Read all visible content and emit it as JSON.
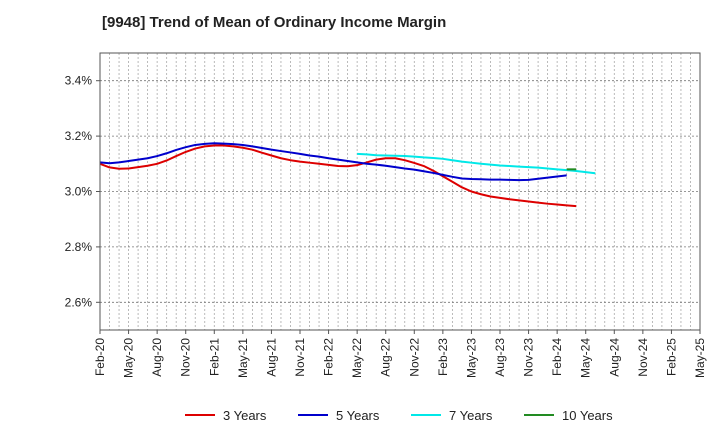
{
  "chart_data": {
    "type": "line",
    "title": "[9948]  Trend of Mean of Ordinary Income Margin",
    "xlabel": "",
    "ylabel": "",
    "ylim": [
      2.5,
      3.5
    ],
    "grid": true,
    "legend_position": "bottom",
    "x_tick_labels": [
      "Feb-20",
      "May-20",
      "Aug-20",
      "Nov-20",
      "Feb-21",
      "May-21",
      "Aug-21",
      "Nov-21",
      "Feb-22",
      "May-22",
      "Aug-22",
      "Nov-22",
      "Feb-23",
      "May-23",
      "Aug-23",
      "Nov-23",
      "Feb-24",
      "May-24",
      "Aug-24",
      "Nov-24",
      "Feb-25",
      "May-25"
    ],
    "y_ticks": [
      2.6,
      2.8,
      3.0,
      3.2,
      3.4
    ],
    "y_tick_labels": [
      "2.6%",
      "2.8%",
      "3.0%",
      "3.2%",
      "3.4%"
    ],
    "series": [
      {
        "name": "3 Years",
        "color": "#dd0000",
        "start_index": 0,
        "values": [
          3.1,
          3.087,
          3.082,
          3.083,
          3.088,
          3.093,
          3.1,
          3.112,
          3.128,
          3.143,
          3.155,
          3.163,
          3.166,
          3.166,
          3.163,
          3.158,
          3.151,
          3.14,
          3.13,
          3.12,
          3.113,
          3.108,
          3.104,
          3.1,
          3.096,
          3.092,
          3.091,
          3.095,
          3.105,
          3.115,
          3.12,
          3.12,
          3.113,
          3.103,
          3.092,
          3.075,
          3.055,
          3.035,
          3.015,
          3.0,
          2.99,
          2.982,
          2.977,
          2.972,
          2.968,
          2.964,
          2.96,
          2.956,
          2.953,
          2.95,
          2.947
        ]
      },
      {
        "name": "5 Years",
        "color": "#0000cc",
        "start_index": 0,
        "values": [
          3.105,
          3.102,
          3.105,
          3.11,
          3.115,
          3.12,
          3.128,
          3.138,
          3.15,
          3.16,
          3.168,
          3.172,
          3.174,
          3.173,
          3.171,
          3.168,
          3.163,
          3.157,
          3.151,
          3.146,
          3.141,
          3.136,
          3.13,
          3.126,
          3.12,
          3.115,
          3.11,
          3.105,
          3.1,
          3.097,
          3.093,
          3.088,
          3.083,
          3.079,
          3.073,
          3.067,
          3.06,
          3.053,
          3.047,
          3.045,
          3.044,
          3.043,
          3.043,
          3.042,
          3.041,
          3.042,
          3.046,
          3.05,
          3.054,
          3.058
        ]
      },
      {
        "name": "7 Years",
        "color": "#00e8e8",
        "start_index": 27,
        "values": [
          3.136,
          3.134,
          3.131,
          3.13,
          3.129,
          3.128,
          3.126,
          3.123,
          3.121,
          3.118,
          3.113,
          3.108,
          3.104,
          3.1,
          3.097,
          3.094,
          3.092,
          3.09,
          3.088,
          3.086,
          3.083,
          3.08,
          3.077,
          3.074,
          3.07,
          3.066
        ]
      },
      {
        "name": "10 Years",
        "color": "#228b22",
        "start_index": 49,
        "values": [
          3.08,
          3.08
        ]
      }
    ]
  }
}
